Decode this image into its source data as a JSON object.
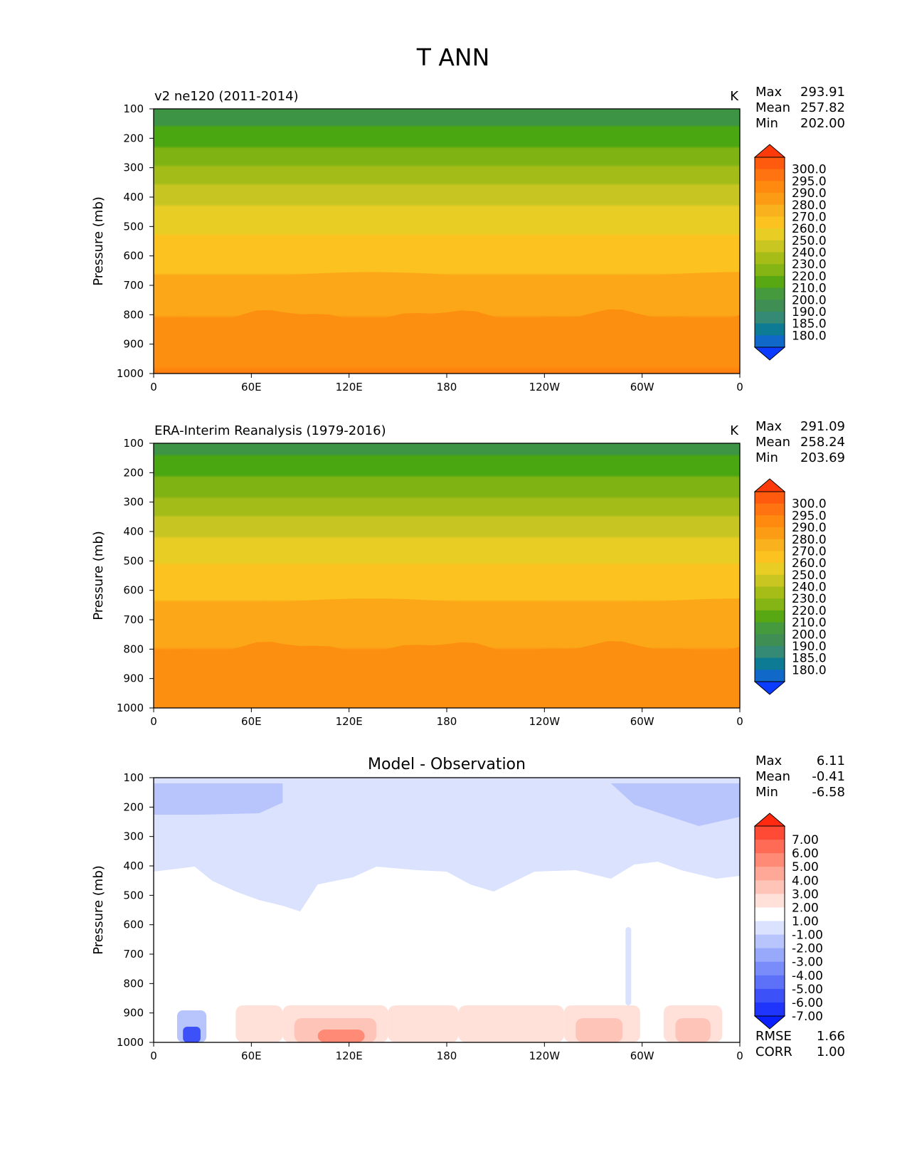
{
  "figure_title": "T ANN",
  "chart_data": [
    {
      "type": "heatmap",
      "title": "v2 ne120 (2011-2014)",
      "units": "K",
      "ylabel": "Pressure (mb)",
      "xlabel": "",
      "x_ticks": [
        "0",
        "60E",
        "120E",
        "180",
        "120W",
        "60W",
        "0"
      ],
      "y_ticks": [
        "100",
        "200",
        "300",
        "400",
        "500",
        "600",
        "700",
        "800",
        "900",
        "1000"
      ],
      "ylim": [
        100,
        1000
      ],
      "stats": [
        {
          "label": "Max",
          "value": "293.91"
        },
        {
          "label": "Mean",
          "value": "257.82"
        },
        {
          "label": "Min",
          "value": "202.00"
        }
      ],
      "colorbar_levels": [
        "300.0",
        "295.0",
        "290.0",
        "280.0",
        "270.0",
        "260.0",
        "250.0",
        "240.0",
        "230.0",
        "220.0",
        "210.0",
        "200.0",
        "190.0",
        "185.0",
        "180.0"
      ],
      "colorbar_colors": [
        "#ff3a0a",
        "#ff5a0d",
        "#ff7410",
        "#ff8a0f",
        "#fb9c14",
        "#f9b11e",
        "#fcc320",
        "#e8cd25",
        "#c9c521",
        "#a6bd18",
        "#85b514",
        "#57a812",
        "#449a3c",
        "#3f8f55",
        "#348a74",
        "#0e7b95",
        "#1068c8",
        "#0b3cff"
      ]
    },
    {
      "type": "heatmap",
      "title": "ERA-Interim Reanalysis (1979-2016)",
      "units": "K",
      "ylabel": "Pressure (mb)",
      "xlabel": "",
      "x_ticks": [
        "0",
        "60E",
        "120E",
        "180",
        "120W",
        "60W",
        "0"
      ],
      "y_ticks": [
        "100",
        "200",
        "300",
        "400",
        "500",
        "600",
        "700",
        "800",
        "900",
        "1000"
      ],
      "ylim": [
        100,
        1000
      ],
      "stats": [
        {
          "label": "Max",
          "value": "291.09"
        },
        {
          "label": "Mean",
          "value": "258.24"
        },
        {
          "label": "Min",
          "value": "203.69"
        }
      ],
      "colorbar_levels": [
        "300.0",
        "295.0",
        "290.0",
        "280.0",
        "270.0",
        "260.0",
        "250.0",
        "240.0",
        "230.0",
        "220.0",
        "210.0",
        "200.0",
        "190.0",
        "185.0",
        "180.0"
      ],
      "colorbar_colors": [
        "#ff3a0a",
        "#ff5a0d",
        "#ff7410",
        "#ff8a0f",
        "#fb9c14",
        "#f9b11e",
        "#fcc320",
        "#e8cd25",
        "#c9c521",
        "#a6bd18",
        "#85b514",
        "#57a812",
        "#449a3c",
        "#3f8f55",
        "#348a74",
        "#0e7b95",
        "#1068c8",
        "#0b3cff"
      ]
    },
    {
      "type": "heatmap",
      "title": "Model - Observation",
      "units": "",
      "ylabel": "Pressure (mb)",
      "xlabel": "",
      "x_ticks": [
        "0",
        "60E",
        "120E",
        "180",
        "120W",
        "60W",
        "0"
      ],
      "y_ticks": [
        "100",
        "200",
        "300",
        "400",
        "500",
        "600",
        "700",
        "800",
        "900",
        "1000"
      ],
      "ylim": [
        100,
        1000
      ],
      "stats": [
        {
          "label": "Max",
          "value": "6.11"
        },
        {
          "label": "Mean",
          "value": "-0.41"
        },
        {
          "label": "Min",
          "value": "-6.58"
        }
      ],
      "bottom_stats": [
        {
          "label": "RMSE",
          "value": "1.66"
        },
        {
          "label": "CORR",
          "value": "1.00"
        }
      ],
      "colorbar_levels": [
        "7.00",
        "6.00",
        "5.00",
        "4.00",
        "3.00",
        "2.00",
        "1.00",
        "-1.00",
        "-2.00",
        "-3.00",
        "-4.00",
        "-5.00",
        "-6.00",
        "-7.00"
      ],
      "colorbar_colors": [
        "#ff2a10",
        "#ff4a35",
        "#ff6b55",
        "#ff8a75",
        "#ffa898",
        "#ffc4b8",
        "#ffe1da",
        "#ffffff",
        "#dbe2fd",
        "#b8c4fc",
        "#98a8fb",
        "#7a8cf9",
        "#5c70f8",
        "#3c52f8",
        "#1f35fb",
        "#0a20ff"
      ]
    }
  ]
}
